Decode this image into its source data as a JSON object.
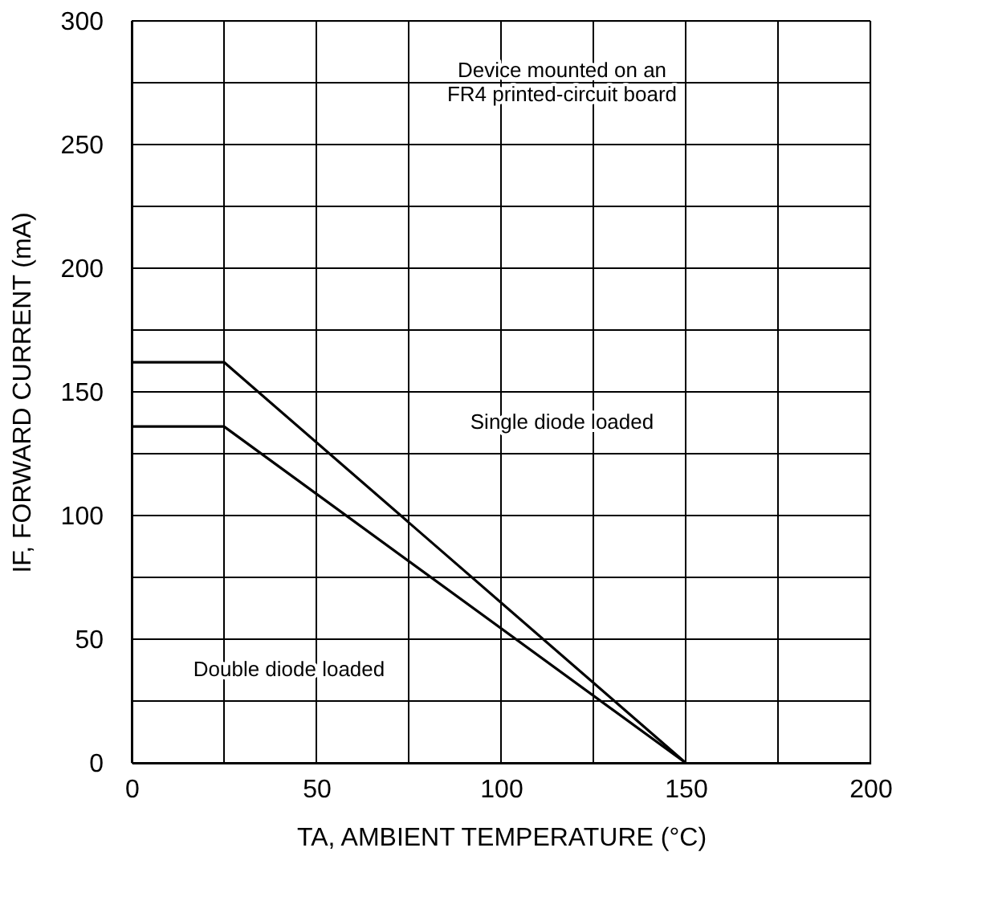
{
  "chart_data": {
    "type": "line",
    "xlabel": "TA, AMBIENT TEMPERATURE (°C)",
    "ylabel": "IF, FORWARD CURRENT (mA)",
    "series": [
      {
        "color": "#000000",
        "x": [
          0,
          25,
          150
        ],
        "values": [
          162,
          162,
          0
        ]
      },
      {
        "color": "#000000",
        "x": [
          0,
          25,
          150
        ],
        "values": [
          136,
          136,
          0
        ]
      }
    ],
    "xlim": [
      0,
      200
    ],
    "ylim": [
      0,
      300
    ],
    "xticks": [
      0,
      {
        "value": 25,
        "label": null
      },
      50,
      {
        "value": 75,
        "label": null
      },
      100,
      {
        "value": 125,
        "label": null
      },
      150,
      {
        "value": 175,
        "label": null
      },
      200
    ],
    "yticks": [
      0,
      {
        "value": 25,
        "label": null
      },
      50,
      {
        "value": 75,
        "label": null
      },
      100,
      {
        "value": 125,
        "label": null
      },
      150,
      {
        "value": 175,
        "label": null
      },
      200,
      {
        "value": 225,
        "label": null
      },
      250,
      {
        "value": 275,
        "label": null
      },
      300
    ],
    "grid": true,
    "marker": "none",
    "line_style": "solid",
    "annotations": [
      "Single diode loaded",
      "Double diode loaded",
      "Device mounted on an\nFR4 printed-circuit board"
    ]
  }
}
